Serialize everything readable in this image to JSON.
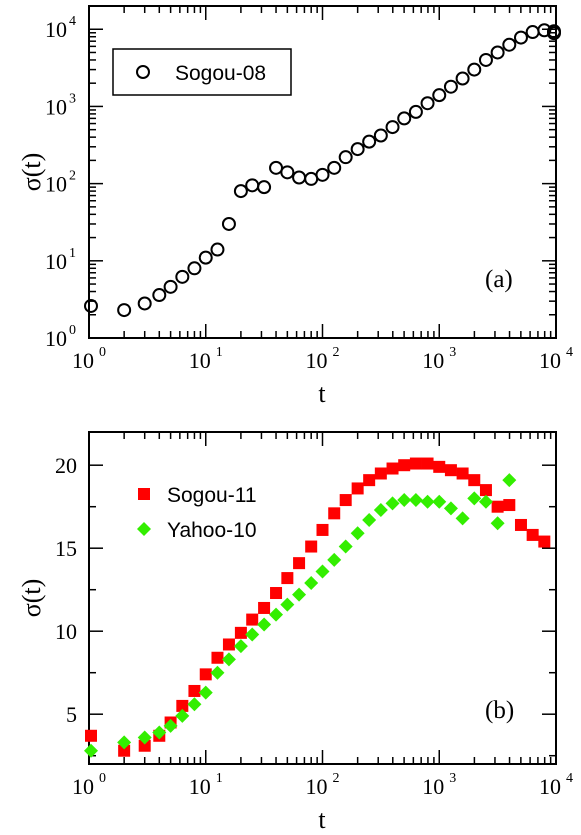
{
  "chart_data": [
    {
      "type": "scatter",
      "panel_label": "(a)",
      "xlabel": "t",
      "ylabel": "σ(t)",
      "x_scale": "log",
      "y_scale": "log",
      "xlim": [
        1,
        10000
      ],
      "ylim": [
        1,
        20000
      ],
      "x_ticks": [
        {
          "base": "10",
          "exp": "0",
          "value": 1
        },
        {
          "base": "10",
          "exp": "1",
          "value": 10
        },
        {
          "base": "10",
          "exp": "2",
          "value": 100
        },
        {
          "base": "10",
          "exp": "3",
          "value": 1000
        },
        {
          "base": "10",
          "exp": "4",
          "value": 10000
        }
      ],
      "y_ticks": [
        {
          "base": "10",
          "exp": "0",
          "value": 1
        },
        {
          "base": "10",
          "exp": "1",
          "value": 10
        },
        {
          "base": "10",
          "exp": "2",
          "value": 100
        },
        {
          "base": "10",
          "exp": "3",
          "value": 1000
        },
        {
          "base": "10",
          "exp": "4",
          "value": 10000
        }
      ],
      "legend_position": "top-left",
      "grid": false,
      "series": [
        {
          "name": "Sogou-08",
          "marker": "open-circle",
          "color": "#000000",
          "points": [
            [
              1,
              2.6
            ],
            [
              2,
              2.3
            ],
            [
              3,
              2.8
            ],
            [
              4,
              3.6
            ],
            [
              5,
              4.6
            ],
            [
              6.3,
              6.2
            ],
            [
              8,
              8
            ],
            [
              10,
              11
            ],
            [
              12.6,
              14
            ],
            [
              15.8,
              30
            ],
            [
              20,
              80
            ],
            [
              25,
              95
            ],
            [
              31.6,
              90
            ],
            [
              40,
              160
            ],
            [
              50,
              140
            ],
            [
              63,
              120
            ],
            [
              80,
              115
            ],
            [
              100,
              130
            ],
            [
              126,
              160
            ],
            [
              158,
              220
            ],
            [
              200,
              280
            ],
            [
              251,
              350
            ],
            [
              316,
              420
            ],
            [
              398,
              540
            ],
            [
              501,
              700
            ],
            [
              631,
              850
            ],
            [
              794,
              1100
            ],
            [
              1000,
              1400
            ],
            [
              1259,
              1800
            ],
            [
              1585,
              2300
            ],
            [
              1995,
              3000
            ],
            [
              2512,
              4000
            ],
            [
              3162,
              5000
            ],
            [
              3981,
              6300
            ],
            [
              5012,
              7800
            ],
            [
              6310,
              9200
            ],
            [
              7943,
              9700
            ],
            [
              10000,
              9400
            ],
            [
              12590,
              8900
            ]
          ]
        }
      ]
    },
    {
      "type": "scatter",
      "panel_label": "(b)",
      "xlabel": "t",
      "ylabel": "σ(t)",
      "x_scale": "log",
      "y_scale": "linear",
      "xlim": [
        1,
        10000
      ],
      "ylim": [
        2,
        22
      ],
      "x_ticks": [
        {
          "base": "10",
          "exp": "0",
          "value": 1
        },
        {
          "base": "10",
          "exp": "1",
          "value": 10
        },
        {
          "base": "10",
          "exp": "2",
          "value": 100
        },
        {
          "base": "10",
          "exp": "3",
          "value": 1000
        },
        {
          "base": "10",
          "exp": "4",
          "value": 10000
        }
      ],
      "y_ticks": [
        "5",
        "10",
        "15",
        "20"
      ],
      "legend_position": "top-left",
      "grid": false,
      "series": [
        {
          "name": "Sogou-11",
          "marker": "filled-square",
          "color": "#ff0000",
          "points": [
            [
              1,
              3.7
            ],
            [
              2,
              2.8
            ],
            [
              3,
              3.1
            ],
            [
              4,
              3.7
            ],
            [
              5,
              4.5
            ],
            [
              6.3,
              5.5
            ],
            [
              8,
              6.4
            ],
            [
              10,
              7.4
            ],
            [
              12.6,
              8.4
            ],
            [
              15.8,
              9.2
            ],
            [
              20,
              9.9
            ],
            [
              25,
              10.7
            ],
            [
              31.6,
              11.4
            ],
            [
              40,
              12.3
            ],
            [
              50,
              13.2
            ],
            [
              63,
              14.1
            ],
            [
              80,
              15.1
            ],
            [
              100,
              16.1
            ],
            [
              126,
              17.1
            ],
            [
              158,
              17.9
            ],
            [
              200,
              18.6
            ],
            [
              251,
              19.1
            ],
            [
              316,
              19.5
            ],
            [
              398,
              19.8
            ],
            [
              501,
              20.0
            ],
            [
              631,
              20.1
            ],
            [
              794,
              20.1
            ],
            [
              1000,
              19.9
            ],
            [
              1259,
              19.7
            ],
            [
              1585,
              19.5
            ],
            [
              1995,
              19.1
            ],
            [
              2512,
              18.5
            ],
            [
              3162,
              17.5
            ],
            [
              3981,
              17.6
            ],
            [
              5012,
              16.4
            ],
            [
              6310,
              15.8
            ],
            [
              7943,
              15.4
            ]
          ]
        },
        {
          "name": "Yahoo-10",
          "marker": "filled-diamond",
          "color": "#33ee00",
          "points": [
            [
              1,
              2.8
            ],
            [
              2,
              3.3
            ],
            [
              3,
              3.6
            ],
            [
              4,
              3.9
            ],
            [
              5,
              4.3
            ],
            [
              6.3,
              4.9
            ],
            [
              8,
              5.6
            ],
            [
              10,
              6.3
            ],
            [
              12.6,
              7.5
            ],
            [
              15.8,
              8.3
            ],
            [
              20,
              9.1
            ],
            [
              25,
              9.8
            ],
            [
              31.6,
              10.4
            ],
            [
              40,
              11.0
            ],
            [
              50,
              11.6
            ],
            [
              63,
              12.2
            ],
            [
              80,
              12.9
            ],
            [
              100,
              13.6
            ],
            [
              126,
              14.3
            ],
            [
              158,
              15.1
            ],
            [
              200,
              15.9
            ],
            [
              251,
              16.7
            ],
            [
              316,
              17.3
            ],
            [
              398,
              17.7
            ],
            [
              501,
              17.9
            ],
            [
              631,
              17.9
            ],
            [
              794,
              17.8
            ],
            [
              1000,
              17.8
            ],
            [
              1259,
              17.4
            ],
            [
              1585,
              16.8
            ],
            [
              1995,
              18.0
            ],
            [
              2512,
              17.8
            ],
            [
              3162,
              16.5
            ],
            [
              3981,
              19.1
            ]
          ]
        }
      ]
    }
  ]
}
